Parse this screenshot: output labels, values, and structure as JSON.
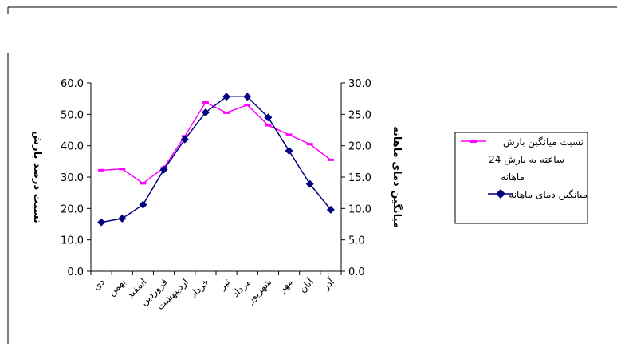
{
  "chart_data": {
    "type": "line",
    "categories": [
      "دی",
      "بهمن",
      "اسفند",
      "فروردین",
      "اردیبهشت",
      "خرداد",
      "تیر",
      "مرداد",
      "شهریور",
      "مهر",
      "آبان",
      "آذر"
    ],
    "series": [
      {
        "name": "نسبت میانگین بارش 24 ساعته به بارش ماهانه",
        "axis": "left",
        "color": "#ff00ff",
        "marker": "dash",
        "values": [
          32.2,
          32.6,
          28.0,
          33.0,
          43.0,
          53.8,
          50.5,
          53.0,
          46.5,
          43.5,
          40.5,
          35.5
        ]
      },
      {
        "name": "میانگین دمای ماهانه",
        "axis": "right",
        "color": "#000080",
        "marker": "diamond",
        "values": [
          7.8,
          8.4,
          10.6,
          16.2,
          21.0,
          25.3,
          27.8,
          27.8,
          24.5,
          19.2,
          13.9,
          9.8
        ]
      }
    ],
    "y_left": {
      "label": "نسبت درصد بارش",
      "ylim": [
        0,
        60
      ],
      "ticks": [
        "0.0",
        "10.0",
        "20.0",
        "30.0",
        "40.0",
        "50.0",
        "60.0"
      ]
    },
    "y_right": {
      "label": "میانگین دمای ماهانه",
      "ylim": [
        0,
        30
      ],
      "ticks": [
        "0.0",
        "5.0",
        "10.0",
        "15.0",
        "20.0",
        "25.0",
        "30.0"
      ]
    },
    "grid": false,
    "legend_position": "right"
  },
  "legend": {
    "precip_lines": [
      "نسبت  میانگین بارش",
      "24 ساعته به بارش",
      "ماهانه"
    ],
    "temp_label": "میانگین دمای ماهانه"
  }
}
